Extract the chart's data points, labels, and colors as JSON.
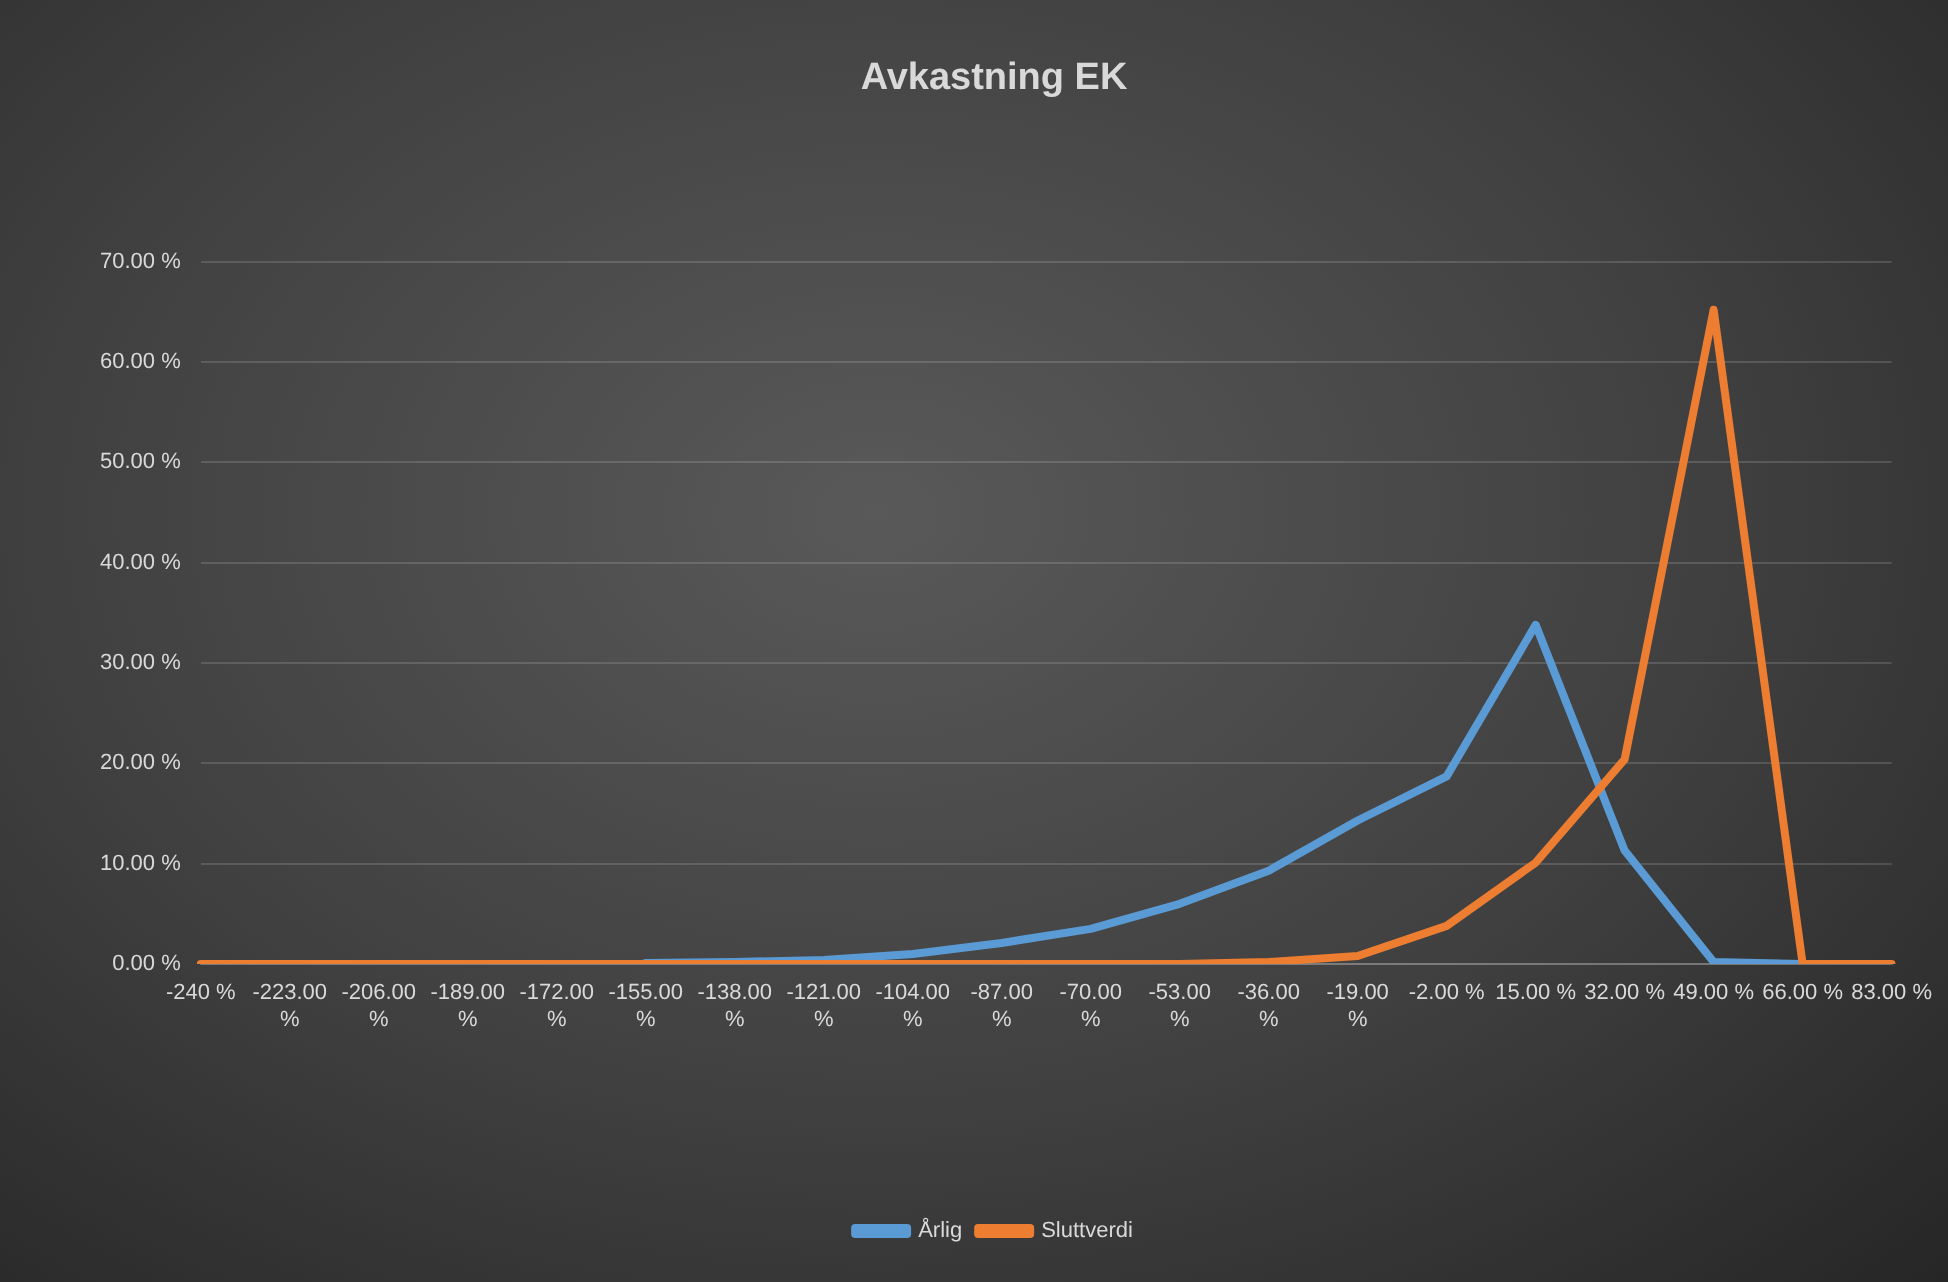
{
  "chart_data": {
    "type": "line",
    "title": "Avkastning EK",
    "categories": [
      "-240 %",
      "-223.00 %",
      "-206.00 %",
      "-189.00 %",
      "-172.00 %",
      "-155.00 %",
      "-138.00 %",
      "-121.00 %",
      "-104.00 %",
      "-87.00 %",
      "-70.00 %",
      "-53.00 %",
      "-36.00 %",
      "-19.00 %",
      "-2.00 %",
      "15.00 %",
      "32.00 %",
      "49.00 %",
      "66.00 %",
      "83.00 %"
    ],
    "series": [
      {
        "name": "Årlig",
        "color": "#5b9bd5",
        "values": [
          null,
          null,
          null,
          null,
          null,
          0.1,
          0.2,
          0.4,
          1.0,
          2.1,
          3.5,
          6.0,
          9.3,
          14.3,
          18.7,
          33.8,
          11.3,
          0.2,
          0,
          null
        ]
      },
      {
        "name": "Sluttverdi",
        "color": "#ed7d31",
        "values": [
          0,
          0,
          0,
          0,
          0,
          0,
          0,
          0,
          0,
          0,
          0,
          0,
          0.2,
          0.8,
          3.8,
          10.1,
          20.4,
          65.2,
          0,
          0
        ]
      }
    ],
    "ylim": [
      0,
      70
    ],
    "yticks": [
      {
        "value": 0,
        "label": "0.00 %"
      },
      {
        "value": 10,
        "label": "10.00 %"
      },
      {
        "value": 20,
        "label": "20.00 %"
      },
      {
        "value": 30,
        "label": "30.00 %"
      },
      {
        "value": 40,
        "label": "40.00 %"
      },
      {
        "value": 50,
        "label": "50.00 %"
      },
      {
        "value": 60,
        "label": "60.00 %"
      },
      {
        "value": 70,
        "label": "70.00 %"
      }
    ],
    "grid": "y",
    "legend": "bottom",
    "marker": "none",
    "line_style": "solid"
  }
}
